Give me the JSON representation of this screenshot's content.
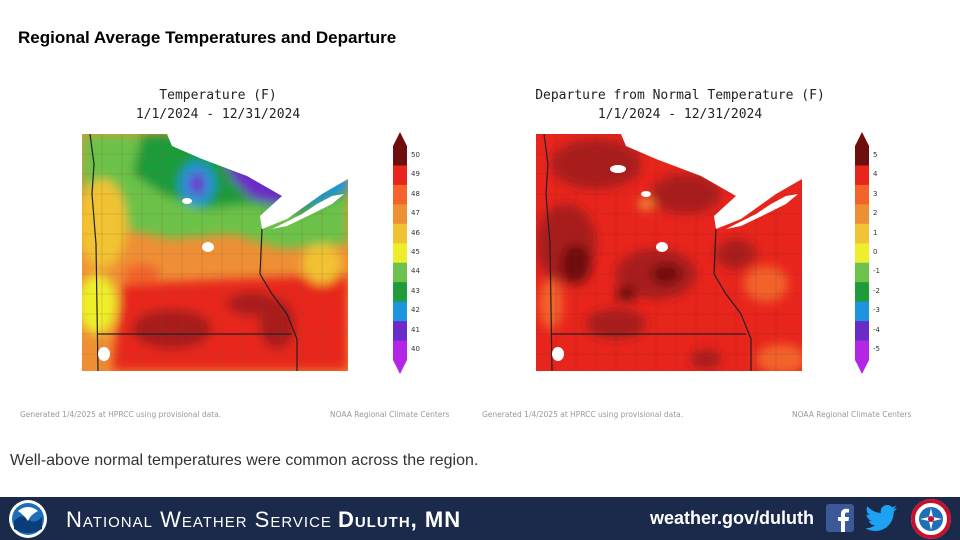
{
  "slide_title": "Regional Average Temperatures and Departure",
  "maps": [
    {
      "title_line1": "Temperature (F)",
      "title_line2": "1/1/2024 - 12/31/2024",
      "legend_ticks": [
        "50",
        "49",
        "48",
        "47",
        "46",
        "45",
        "44",
        "43",
        "42",
        "41",
        "40"
      ],
      "legend_colors": [
        "#6e0f0f",
        "#e8251d",
        "#f2642a",
        "#ef8f35",
        "#f1c233",
        "#eeee2c",
        "#6cc24a",
        "#1f9b3a",
        "#1e94de",
        "#6a2cc8",
        "#b326e6"
      ],
      "generated_note": "Generated 1/4/2025 at HPRCC using provisional data.",
      "source_note": "NOAA Regional Climate Centers"
    },
    {
      "title_line1": "Departure from Normal Temperature (F)",
      "title_line2": "1/1/2024 - 12/31/2024",
      "legend_ticks": [
        "5",
        "4",
        "3",
        "2",
        "1",
        "0",
        "-1",
        "-2",
        "-3",
        "-4",
        "-5"
      ],
      "legend_colors": [
        "#6e0f0f",
        "#e8251d",
        "#f2642a",
        "#ef8f35",
        "#f1c233",
        "#eeee2c",
        "#6cc24a",
        "#1f9b3a",
        "#1e94de",
        "#6a2cc8",
        "#b326e6"
      ],
      "generated_note": "Generated 1/4/2025 at HPRCC using provisional data.",
      "source_note": "NOAA Regional Climate Centers"
    }
  ],
  "caption": "Well-above normal temperatures were common across the region.",
  "footer": {
    "agency": "National Weather Service",
    "office": "Duluth, MN",
    "website": "weather.gov/duluth",
    "icons": [
      "noaa-logo",
      "facebook-icon",
      "twitter-icon",
      "nws-logo"
    ],
    "background_color": "#1b2a4a"
  }
}
